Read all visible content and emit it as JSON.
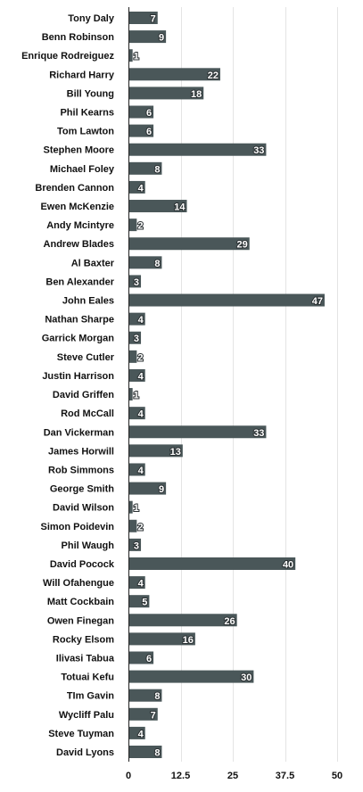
{
  "chart_data": {
    "type": "bar",
    "orientation": "horizontal",
    "categories": [
      "Tony Daly",
      "Benn Robinson",
      "Enrique Rodreiguez",
      "Richard Harry",
      "Bill Young",
      "Phil Kearns",
      "Tom Lawton",
      "Stephen Moore",
      "Michael Foley",
      "Brenden Cannon",
      "Ewen McKenzie",
      "Andy Mcintyre",
      "Andrew Blades",
      "Al Baxter",
      "Ben Alexander",
      "John Eales",
      "Nathan Sharpe",
      "Garrick Morgan",
      "Steve Cutler",
      "Justin Harrison",
      "David Griffen",
      "Rod McCall",
      "Dan Vickerman",
      "James Horwill",
      "Rob Simmons",
      "George Smith",
      "David Wilson",
      "Simon Poidevin",
      "Phil Waugh",
      "David Pocock",
      "Will Ofahengue",
      "Matt Cockbain",
      "Owen Finegan",
      "Rocky Elsom",
      "Ilivasi Tabua",
      "Totuai Kefu",
      "TIm Gavin",
      "Wycliff Palu",
      "Steve Tuyman",
      "David Lyons"
    ],
    "values": [
      7,
      9,
      1,
      22,
      18,
      6,
      6,
      33,
      8,
      4,
      14,
      2,
      29,
      8,
      3,
      47,
      4,
      3,
      2,
      4,
      1,
      4,
      33,
      13,
      4,
      9,
      1,
      2,
      3,
      40,
      4,
      5,
      26,
      16,
      6,
      30,
      8,
      7,
      4,
      8
    ],
    "xlim": [
      0,
      50
    ],
    "xticks": [
      0,
      12.5,
      25,
      37.5,
      50
    ],
    "xtick_labels": [
      "0",
      "12.5",
      "25",
      "37.5",
      "50"
    ],
    "grid": true,
    "colors": {
      "bar": "#4a5759",
      "value_label": "#ffffff",
      "grid": "#e4e4e4",
      "text": "#111111"
    }
  }
}
